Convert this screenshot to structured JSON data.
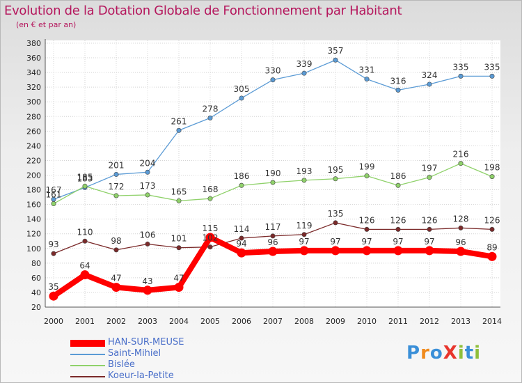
{
  "header": {
    "title": "Evolution de la Dotation Globale de Fonctionnement par Habitant",
    "subtitle": "(en € et par an)"
  },
  "brand": {
    "logo_text": "ProXiti"
  },
  "colors": {
    "title": "#b5175d",
    "legend_text": "#4a6fc9"
  },
  "chart_data": {
    "type": "line",
    "title": "Evolution de la Dotation Globale de Fonctionnement par Habitant",
    "subtitle": "(en € et par an)",
    "xlabel": "",
    "ylabel": "",
    "x": [
      "2000",
      "2001",
      "2002",
      "2003",
      "2004",
      "2005",
      "2006",
      "2007",
      "2008",
      "2009",
      "2010",
      "2011",
      "2012",
      "2013",
      "2014"
    ],
    "ylim": [
      20,
      380
    ],
    "yticks": [
      20,
      40,
      60,
      80,
      100,
      120,
      140,
      160,
      180,
      200,
      220,
      240,
      260,
      280,
      300,
      320,
      340,
      360,
      380
    ],
    "grid": true,
    "legend_position": "bottom-left",
    "series": [
      {
        "name": "HAN-SUR-MEUSE",
        "color": "#ff0000",
        "values": [
          35,
          64,
          47,
          43,
          47,
          115,
          94,
          96,
          97,
          97,
          97,
          97,
          97,
          96,
          89
        ]
      },
      {
        "name": "Saint-Mihiel",
        "color": "#5b9bd5",
        "values": [
          167,
          183,
          201,
          204,
          261,
          278,
          305,
          330,
          339,
          357,
          331,
          316,
          324,
          335,
          335
        ]
      },
      {
        "name": "Bislée",
        "color": "#8fd16a",
        "values": [
          161,
          185,
          172,
          173,
          165,
          168,
          186,
          190,
          193,
          195,
          199,
          186,
          197,
          216,
          198
        ]
      },
      {
        "name": "Koeur-la-Petite",
        "color": "#7b2a2a",
        "values": [
          93,
          110,
          98,
          106,
          101,
          102,
          114,
          117,
          119,
          135,
          126,
          126,
          126,
          128,
          126
        ]
      }
    ]
  }
}
